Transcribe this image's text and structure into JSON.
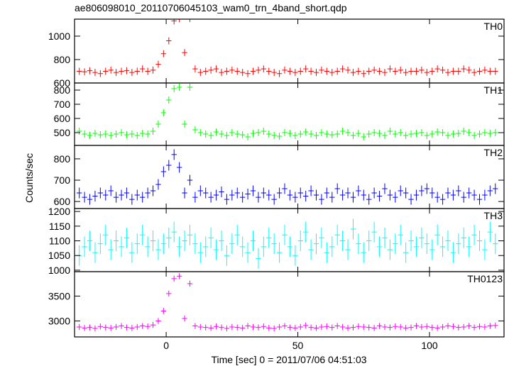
{
  "chart_data": {
    "type": "step",
    "title": "ae806098010_20110706045103_wam0_trn_4band_short.qdp",
    "xlabel": "Time [sec] 0 = 2011/07/06 04:51:03",
    "ylabel": "Counts/sec",
    "xlim": [
      -34.8,
      128.3
    ],
    "xticks": [
      0,
      50,
      100
    ],
    "x": [
      -33,
      -31,
      -29,
      -27,
      -25,
      -23,
      -21,
      -19,
      -17,
      -15,
      -13,
      -11,
      -9,
      -7,
      -5,
      -3,
      -1,
      1,
      3,
      5,
      7,
      9,
      11,
      13,
      15,
      17,
      19,
      21,
      23,
      25,
      27,
      29,
      31,
      33,
      35,
      37,
      39,
      41,
      43,
      45,
      47,
      49,
      51,
      53,
      55,
      57,
      59,
      61,
      63,
      65,
      67,
      69,
      71,
      73,
      75,
      77,
      79,
      81,
      83,
      85,
      87,
      89,
      91,
      93,
      95,
      97,
      99,
      101,
      103,
      105,
      107,
      109,
      111,
      113,
      115,
      117,
      119,
      121,
      123,
      125
    ],
    "panels": [
      {
        "name": "TH0",
        "color": "#ff0000",
        "error": 30,
        "ylim": [
          600,
          1145
        ],
        "yticks": [
          600,
          800,
          1000
        ],
        "values": [
          700,
          695,
          705,
          690,
          680,
          700,
          710,
          690,
          700,
          705,
          690,
          700,
          720,
          700,
          710,
          760,
          850,
          960,
          1130,
          1150,
          860,
          1150,
          720,
          690,
          700,
          710,
          720,
          690,
          700,
          710,
          700,
          690,
          680,
          700,
          710,
          720,
          700,
          690,
          680,
          710,
          700,
          690,
          700,
          720,
          700,
          690,
          710,
          700,
          690,
          700,
          720,
          710,
          690,
          700,
          680,
          700,
          710,
          700,
          690,
          720,
          700,
          710,
          690,
          700,
          700,
          710,
          690,
          700,
          720,
          710,
          690,
          700,
          700,
          720,
          710,
          690,
          700,
          710,
          700,
          700
        ]
      },
      {
        "name": "TH1",
        "color": "#00ff00",
        "error": 25,
        "ylim": [
          410,
          850
        ],
        "yticks": [
          500,
          600,
          700,
          800
        ],
        "values": [
          510,
          490,
          480,
          495,
          485,
          490,
          480,
          490,
          500,
          485,
          490,
          480,
          495,
          490,
          510,
          560,
          640,
          730,
          810,
          820,
          560,
          820,
          520,
          500,
          490,
          480,
          505,
          490,
          480,
          500,
          490,
          485,
          470,
          495,
          500,
          510,
          490,
          480,
          475,
          500,
          495,
          480,
          490,
          505,
          490,
          480,
          500,
          490,
          485,
          490,
          510,
          500,
          480,
          495,
          470,
          490,
          500,
          495,
          480,
          510,
          490,
          500,
          480,
          490,
          495,
          500,
          480,
          490,
          505,
          500,
          480,
          490,
          495,
          510,
          500,
          480,
          490,
          500,
          495,
          500
        ]
      },
      {
        "name": "TH2",
        "color": "#0000ff",
        "error": 25,
        "ylim": [
          567,
          863
        ],
        "yticks": [
          600,
          700,
          800
        ],
        "values": [
          640,
          620,
          610,
          625,
          640,
          630,
          650,
          620,
          630,
          640,
          610,
          630,
          620,
          640,
          650,
          680,
          740,
          770,
          820,
          760,
          640,
          700,
          620,
          650,
          640,
          620,
          630,
          645,
          610,
          630,
          640,
          620,
          635,
          650,
          620,
          640,
          630,
          610,
          640,
          660,
          630,
          620,
          640,
          625,
          650,
          630,
          610,
          640,
          620,
          660,
          630,
          640,
          620,
          650,
          630,
          610,
          640,
          625,
          660,
          630,
          620,
          650,
          640,
          610,
          630,
          650,
          660,
          640,
          620,
          610,
          640,
          630,
          650,
          620,
          640,
          630,
          610,
          630,
          650,
          660
        ]
      },
      {
        "name": "TH3",
        "color": "#00ffff",
        "error": 35,
        "ylim": [
          995,
          1210
        ],
        "yticks": [
          1000,
          1050,
          1100,
          1150,
          1200
        ],
        "values": [
          1050,
          1080,
          1100,
          1060,
          1090,
          1120,
          1070,
          1100,
          1080,
          1110,
          1060,
          1090,
          1120,
          1080,
          1100,
          1070,
          1090,
          1110,
          1130,
          1080,
          1100,
          1120,
          1090,
          1060,
          1080,
          1110,
          1070,
          1100,
          1050,
          1090,
          1120,
          1080,
          1060,
          1100,
          1040,
          1080,
          1110,
          1090,
          1060,
          1120,
          1080,
          1050,
          1100,
          1130,
          1070,
          1090,
          1110,
          1060,
          1080,
          1120,
          1100,
          1070,
          1140,
          1090,
          1060,
          1100,
          1130,
          1080,
          1110,
          1070,
          1090,
          1120,
          1060,
          1100,
          1080,
          1110,
          1090,
          1070,
          1120,
          1080,
          1100,
          1060,
          1090,
          1110,
          1080,
          1120,
          1100,
          1070,
          1130,
          1090
        ]
      },
      {
        "name": "TH0123",
        "color": "#ff00ff",
        "error": 60,
        "ylim": [
          2680,
          3990
        ],
        "yticks": [
          3000,
          3500
        ],
        "values": [
          2880,
          2860,
          2870,
          2850,
          2890,
          2870,
          2860,
          2880,
          2900,
          2870,
          2860,
          2880,
          2900,
          2890,
          2920,
          3000,
          3200,
          3550,
          3850,
          3900,
          3050,
          3750,
          2900,
          2880,
          2870,
          2860,
          2890,
          2870,
          2850,
          2880,
          2870,
          2860,
          2900,
          2880,
          2870,
          2890,
          2860,
          2850,
          2880,
          2900,
          2870,
          2860,
          2880,
          2910,
          2870,
          2860,
          2880,
          2890,
          2870,
          2900,
          2880,
          2860,
          2870,
          2890,
          2880,
          2870,
          2860,
          2900,
          2880,
          2870,
          2890,
          2880,
          2860,
          2870,
          2900,
          2880,
          2890,
          2870,
          2860,
          2880,
          2900,
          2890,
          2870,
          2880,
          2900,
          2870,
          2890,
          2880,
          2900,
          2910
        ]
      }
    ]
  }
}
